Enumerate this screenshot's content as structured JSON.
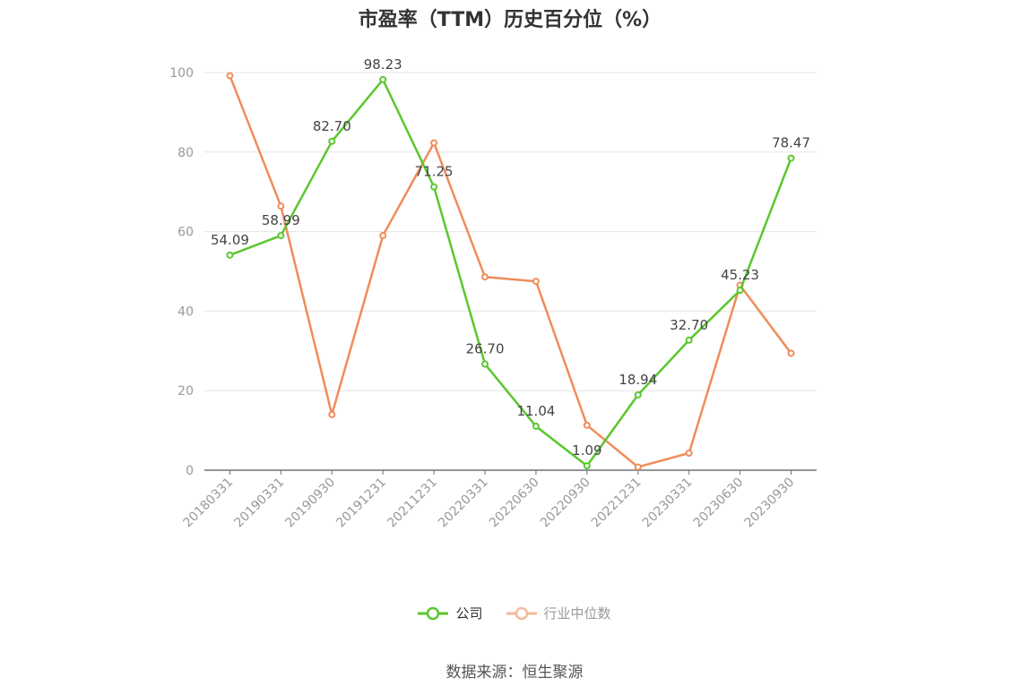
{
  "chart_data": {
    "type": "line",
    "title": "市盈率（TTM）历史百分位（%）",
    "categories": [
      "20180331",
      "20190331",
      "20190930",
      "20191231",
      "20211231",
      "20220331",
      "20220630",
      "20220930",
      "20221231",
      "20230331",
      "20230630",
      "20230930"
    ],
    "series": [
      {
        "name": "公司",
        "color": "#5ac72e",
        "values": [
          54.09,
          58.99,
          82.7,
          98.23,
          71.25,
          26.7,
          11.04,
          1.09,
          18.94,
          32.7,
          45.23,
          78.47
        ],
        "labels": [
          "54.09",
          "58.99",
          "82.70",
          "98.23",
          "71.25",
          "26.70",
          "11.04",
          "1.09",
          "18.94",
          "32.70",
          "45.23",
          "78.47"
        ]
      },
      {
        "name": "行业中位数",
        "color": "#f08c5a",
        "values": [
          99.2,
          66.4,
          14.0,
          59.0,
          82.3,
          48.6,
          47.5,
          11.3,
          0.8,
          4.3,
          46.5,
          29.4
        ]
      }
    ],
    "ylim": [
      0,
      100
    ],
    "yticks": [
      "0",
      "20",
      "40",
      "60",
      "80",
      "100"
    ],
    "grid": true,
    "legend_position": "bottom"
  },
  "source_text": "数据来源：恒生聚源"
}
